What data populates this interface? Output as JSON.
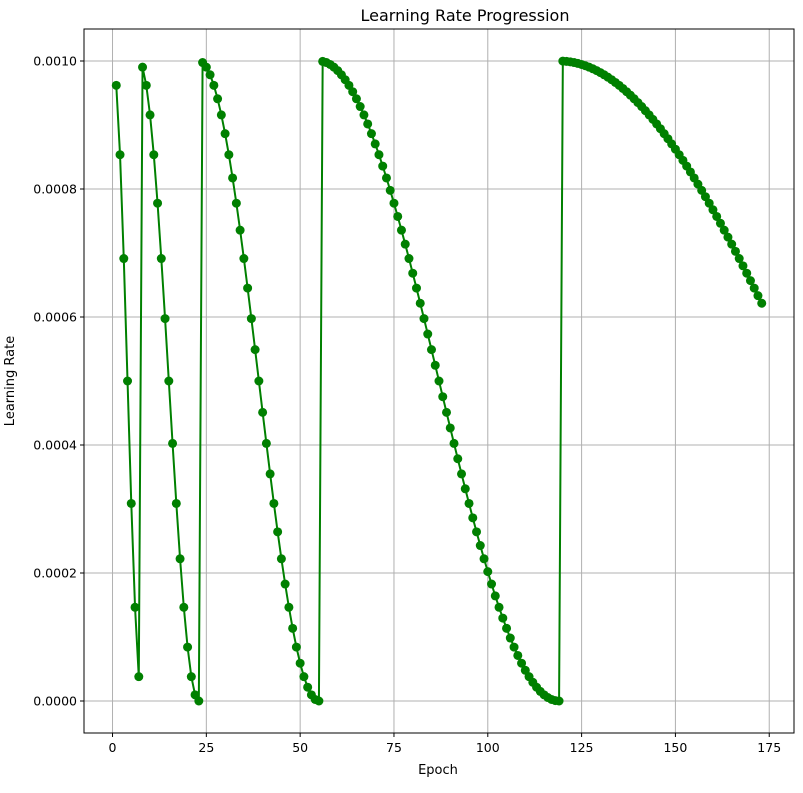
{
  "chart_data": {
    "type": "line",
    "title": "Learning Rate Progression",
    "xlabel": "Epoch",
    "ylabel": "Learning Rate",
    "xlim": [
      -7.6,
      181.6
    ],
    "ylim": [
      -5e-05,
      0.00105
    ],
    "xticks": [
      0,
      25,
      50,
      75,
      100,
      125,
      150,
      175
    ],
    "yticks": [
      0.0,
      0.0002,
      0.0004,
      0.0006,
      0.0008,
      0.001
    ],
    "ytick_labels": [
      "0.0000",
      "0.0002",
      "0.0004",
      "0.0006",
      "0.0008",
      "0.0010"
    ],
    "grid": true,
    "marker": "circle",
    "color": "#008000",
    "schedule_segments": [
      {
        "epochs": [
          1,
          7
        ],
        "T": 8
      },
      {
        "epochs": [
          8,
          23
        ],
        "T": 16
      },
      {
        "epochs": [
          24,
          55
        ],
        "T": 32
      },
      {
        "epochs": [
          56,
          119
        ],
        "T": 64
      },
      {
        "epochs": [
          120,
          173
        ],
        "T": 128
      }
    ],
    "lr_max": 0.001
  }
}
